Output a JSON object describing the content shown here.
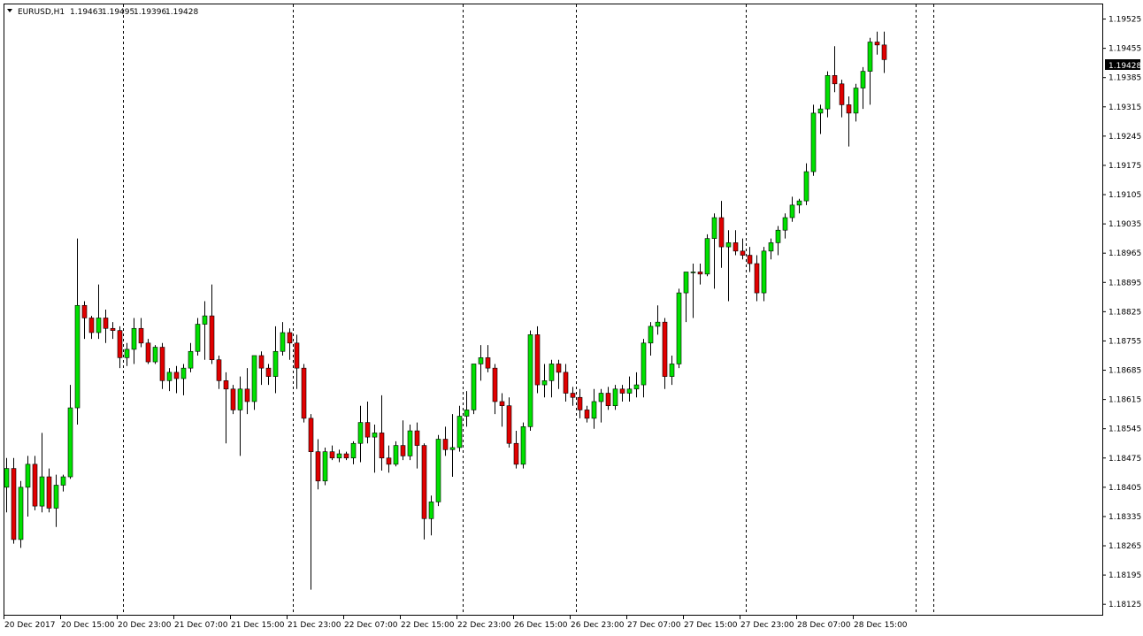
{
  "header": {
    "symbol": "EURUSD,H1",
    "open": "1.19463",
    "high": "1.19495",
    "low": "1.19396",
    "close": "1.19428",
    "menu_glyph": "triangle-down-icon"
  },
  "colors": {
    "background": "#ffffff",
    "frame": "#000000",
    "bull_body": "#00e000",
    "bear_body": "#e00000",
    "wick": "#000000",
    "separator": "#000000",
    "price_tag_bg": "#000000",
    "price_tag_text": "#ffffff"
  },
  "chart_data": {
    "type": "candlestick",
    "symbol": "EURUSD",
    "timeframe": "H1",
    "ylim": [
      1.181,
      1.1956
    ],
    "y_ticks": [
      "1.19525",
      "1.19455",
      "1.19385",
      "1.19315",
      "1.19245",
      "1.19175",
      "1.19105",
      "1.19035",
      "1.18965",
      "1.18895",
      "1.18825",
      "1.18755",
      "1.18685",
      "1.18615",
      "1.18545",
      "1.18475",
      "1.18405",
      "1.18335",
      "1.18265",
      "1.18195",
      "1.18125"
    ],
    "x_labels": [
      "20 Dec 2017",
      "20 Dec 15:00",
      "20 Dec 23:00",
      "21 Dec 07:00",
      "21 Dec 15:00",
      "21 Dec 23:00",
      "22 Dec 07:00",
      "22 Dec 15:00",
      "22 Dec 23:00",
      "26 Dec 15:00",
      "26 Dec 23:00",
      "27 Dec 07:00",
      "27 Dec 15:00",
      "27 Dec 23:00",
      "28 Dec 07:00",
      "28 Dec 15:00"
    ],
    "session_breaks": [
      17,
      41,
      65,
      81,
      105,
      129
    ],
    "current_price": "1.19428",
    "candles": [
      [
        1.18405,
        1.18475,
        1.18345,
        1.1845
      ],
      [
        1.1845,
        1.18475,
        1.1827,
        1.1828
      ],
      [
        1.1828,
        1.1842,
        1.1826,
        1.18405
      ],
      [
        1.18405,
        1.1848,
        1.18335,
        1.1846
      ],
      [
        1.1846,
        1.1848,
        1.1835,
        1.1836
      ],
      [
        1.1836,
        1.18535,
        1.18345,
        1.1843
      ],
      [
        1.1843,
        1.1845,
        1.18345,
        1.18355
      ],
      [
        1.18355,
        1.18435,
        1.1831,
        1.1841
      ],
      [
        1.1841,
        1.18435,
        1.18395,
        1.1843
      ],
      [
        1.1843,
        1.1865,
        1.18425,
        1.18595
      ],
      [
        1.18595,
        1.19,
        1.18555,
        1.1884
      ],
      [
        1.1884,
        1.1885,
        1.1876,
        1.1881
      ],
      [
        1.1881,
        1.18815,
        1.1876,
        1.18775
      ],
      [
        1.18775,
        1.1889,
        1.1876,
        1.1881
      ],
      [
        1.1881,
        1.1883,
        1.1875,
        1.18785
      ],
      [
        1.18785,
        1.188,
        1.1876,
        1.1878
      ],
      [
        1.1878,
        1.1879,
        1.1869,
        1.18715
      ],
      [
        1.18715,
        1.1875,
        1.18695,
        1.18735
      ],
      [
        1.18735,
        1.1881,
        1.187,
        1.18785
      ],
      [
        1.18785,
        1.1881,
        1.1874,
        1.1875
      ],
      [
        1.1875,
        1.1876,
        1.187,
        1.18705
      ],
      [
        1.18705,
        1.18745,
        1.187,
        1.1874
      ],
      [
        1.1874,
        1.1875,
        1.1864,
        1.1866
      ],
      [
        1.1866,
        1.1869,
        1.18635,
        1.1868
      ],
      [
        1.1868,
        1.18695,
        1.1863,
        1.18665
      ],
      [
        1.18665,
        1.187,
        1.18625,
        1.1869
      ],
      [
        1.1869,
        1.1875,
        1.1868,
        1.1873
      ],
      [
        1.1873,
        1.1881,
        1.1872,
        1.18795
      ],
      [
        1.18795,
        1.1885,
        1.1871,
        1.18815
      ],
      [
        1.18815,
        1.1889,
        1.187,
        1.1871
      ],
      [
        1.1871,
        1.1872,
        1.1864,
        1.1866
      ],
      [
        1.1866,
        1.1868,
        1.1851,
        1.1864
      ],
      [
        1.1864,
        1.1865,
        1.1858,
        1.1859
      ],
      [
        1.1859,
        1.1867,
        1.1848,
        1.1864
      ],
      [
        1.1864,
        1.1869,
        1.1858,
        1.1861
      ],
      [
        1.1861,
        1.1872,
        1.1859,
        1.1872
      ],
      [
        1.1872,
        1.1873,
        1.1865,
        1.1869
      ],
      [
        1.1869,
        1.187,
        1.1865,
        1.1867
      ],
      [
        1.1867,
        1.1879,
        1.1863,
        1.1873
      ],
      [
        1.1873,
        1.188,
        1.1872,
        1.18775
      ],
      [
        1.18775,
        1.18785,
        1.1871,
        1.1875
      ],
      [
        1.1875,
        1.1877,
        1.1864,
        1.1869
      ],
      [
        1.1869,
        1.187,
        1.1856,
        1.1857
      ],
      [
        1.1857,
        1.1858,
        1.1816,
        1.1849
      ],
      [
        1.1849,
        1.1852,
        1.184,
        1.1842
      ],
      [
        1.1842,
        1.185,
        1.1841,
        1.1849
      ],
      [
        1.1849,
        1.18505,
        1.1847,
        1.18475
      ],
      [
        1.18475,
        1.18495,
        1.18465,
        1.18485
      ],
      [
        1.18485,
        1.1849,
        1.1847,
        1.18475
      ],
      [
        1.18475,
        1.18515,
        1.1846,
        1.1851
      ],
      [
        1.1851,
        1.186,
        1.18465,
        1.1856
      ],
      [
        1.1856,
        1.1861,
        1.1851,
        1.18525
      ],
      [
        1.18525,
        1.18555,
        1.1844,
        1.18535
      ],
      [
        1.18535,
        1.18625,
        1.18445,
        1.18475
      ],
      [
        1.18475,
        1.18505,
        1.1844,
        1.1846
      ],
      [
        1.1846,
        1.18515,
        1.18455,
        1.18505
      ],
      [
        1.18505,
        1.18565,
        1.1847,
        1.1848
      ],
      [
        1.1848,
        1.18555,
        1.1847,
        1.1854
      ],
      [
        1.1854,
        1.1856,
        1.1845,
        1.18505
      ],
      [
        1.18505,
        1.1851,
        1.1828,
        1.1833
      ],
      [
        1.1833,
        1.18385,
        1.1829,
        1.1837
      ],
      [
        1.1837,
        1.1853,
        1.1836,
        1.1852
      ],
      [
        1.1852,
        1.1855,
        1.1848,
        1.18495
      ],
      [
        1.18495,
        1.1858,
        1.1843,
        1.185
      ],
      [
        1.185,
        1.186,
        1.1849,
        1.18575
      ],
      [
        1.18575,
        1.18635,
        1.1855,
        1.1859
      ],
      [
        1.1859,
        1.187,
        1.1858,
        1.187
      ],
      [
        1.187,
        1.18745,
        1.1866,
        1.18715
      ],
      [
        1.18715,
        1.18745,
        1.1868,
        1.1869
      ],
      [
        1.1869,
        1.187,
        1.1858,
        1.1861
      ],
      [
        1.1861,
        1.1863,
        1.1855,
        1.186
      ],
      [
        1.186,
        1.1862,
        1.185,
        1.1851
      ],
      [
        1.1851,
        1.1854,
        1.1845,
        1.1846
      ],
      [
        1.1846,
        1.1856,
        1.1845,
        1.1855
      ],
      [
        1.1855,
        1.1878,
        1.1854,
        1.1877
      ],
      [
        1.1877,
        1.1879,
        1.1863,
        1.1865
      ],
      [
        1.1865,
        1.187,
        1.1862,
        1.1866
      ],
      [
        1.1866,
        1.1871,
        1.1862,
        1.187
      ],
      [
        1.187,
        1.1871,
        1.1864,
        1.1868
      ],
      [
        1.1868,
        1.187,
        1.1861,
        1.1863
      ],
      [
        1.1863,
        1.18645,
        1.186,
        1.1862
      ],
      [
        1.1862,
        1.1864,
        1.1857,
        1.1859
      ],
      [
        1.1859,
        1.186,
        1.1856,
        1.1857
      ],
      [
        1.1857,
        1.1864,
        1.18545,
        1.1861
      ],
      [
        1.1861,
        1.1864,
        1.1856,
        1.1863
      ],
      [
        1.1863,
        1.18645,
        1.1859,
        1.186
      ],
      [
        1.186,
        1.1865,
        1.1859,
        1.1864
      ],
      [
        1.1864,
        1.1865,
        1.1861,
        1.1863
      ],
      [
        1.1863,
        1.1867,
        1.1861,
        1.1864
      ],
      [
        1.1864,
        1.1868,
        1.1862,
        1.1865
      ],
      [
        1.1865,
        1.1876,
        1.1862,
        1.1875
      ],
      [
        1.1875,
        1.188,
        1.1872,
        1.1879
      ],
      [
        1.1879,
        1.1884,
        1.1877,
        1.188
      ],
      [
        1.188,
        1.1881,
        1.1864,
        1.1867
      ],
      [
        1.1867,
        1.1872,
        1.1865,
        1.187
      ],
      [
        1.187,
        1.1888,
        1.1869,
        1.1887
      ],
      [
        1.1887,
        1.1892,
        1.188,
        1.1892
      ],
      [
        1.1892,
        1.1894,
        1.1881,
        1.1892
      ],
      [
        1.1892,
        1.1894,
        1.1889,
        1.18915
      ],
      [
        1.18915,
        1.1901,
        1.1891,
        1.19
      ],
      [
        1.19,
        1.1906,
        1.1888,
        1.1905
      ],
      [
        1.1905,
        1.1909,
        1.1893,
        1.1898
      ],
      [
        1.1898,
        1.1902,
        1.1885,
        1.1899
      ],
      [
        1.1899,
        1.1902,
        1.1896,
        1.1897
      ],
      [
        1.1897,
        1.19,
        1.1895,
        1.1896
      ],
      [
        1.1896,
        1.1898,
        1.1892,
        1.1894
      ],
      [
        1.1894,
        1.1896,
        1.1885,
        1.1887
      ],
      [
        1.1887,
        1.1898,
        1.1885,
        1.1897
      ],
      [
        1.1897,
        1.19,
        1.1895,
        1.1899
      ],
      [
        1.1899,
        1.1903,
        1.1896,
        1.1902
      ],
      [
        1.1902,
        1.1906,
        1.19,
        1.1905
      ],
      [
        1.1905,
        1.191,
        1.1904,
        1.1908
      ],
      [
        1.1908,
        1.19095,
        1.1906,
        1.1909
      ],
      [
        1.1909,
        1.1918,
        1.1908,
        1.1916
      ],
      [
        1.1916,
        1.1932,
        1.1915,
        1.193
      ],
      [
        1.193,
        1.1932,
        1.1925,
        1.1931
      ],
      [
        1.1931,
        1.194,
        1.1929,
        1.1939
      ],
      [
        1.1939,
        1.1946,
        1.1935,
        1.1937
      ],
      [
        1.1937,
        1.1938,
        1.1929,
        1.1932
      ],
      [
        1.1932,
        1.1934,
        1.1922,
        1.193
      ],
      [
        1.193,
        1.1937,
        1.1928,
        1.1936
      ],
      [
        1.1936,
        1.1941,
        1.1931,
        1.194
      ],
      [
        1.194,
        1.1948,
        1.1932,
        1.1947
      ],
      [
        1.1947,
        1.19495,
        1.1944,
        1.19463
      ],
      [
        1.19463,
        1.19495,
        1.19396,
        1.19428
      ]
    ]
  }
}
